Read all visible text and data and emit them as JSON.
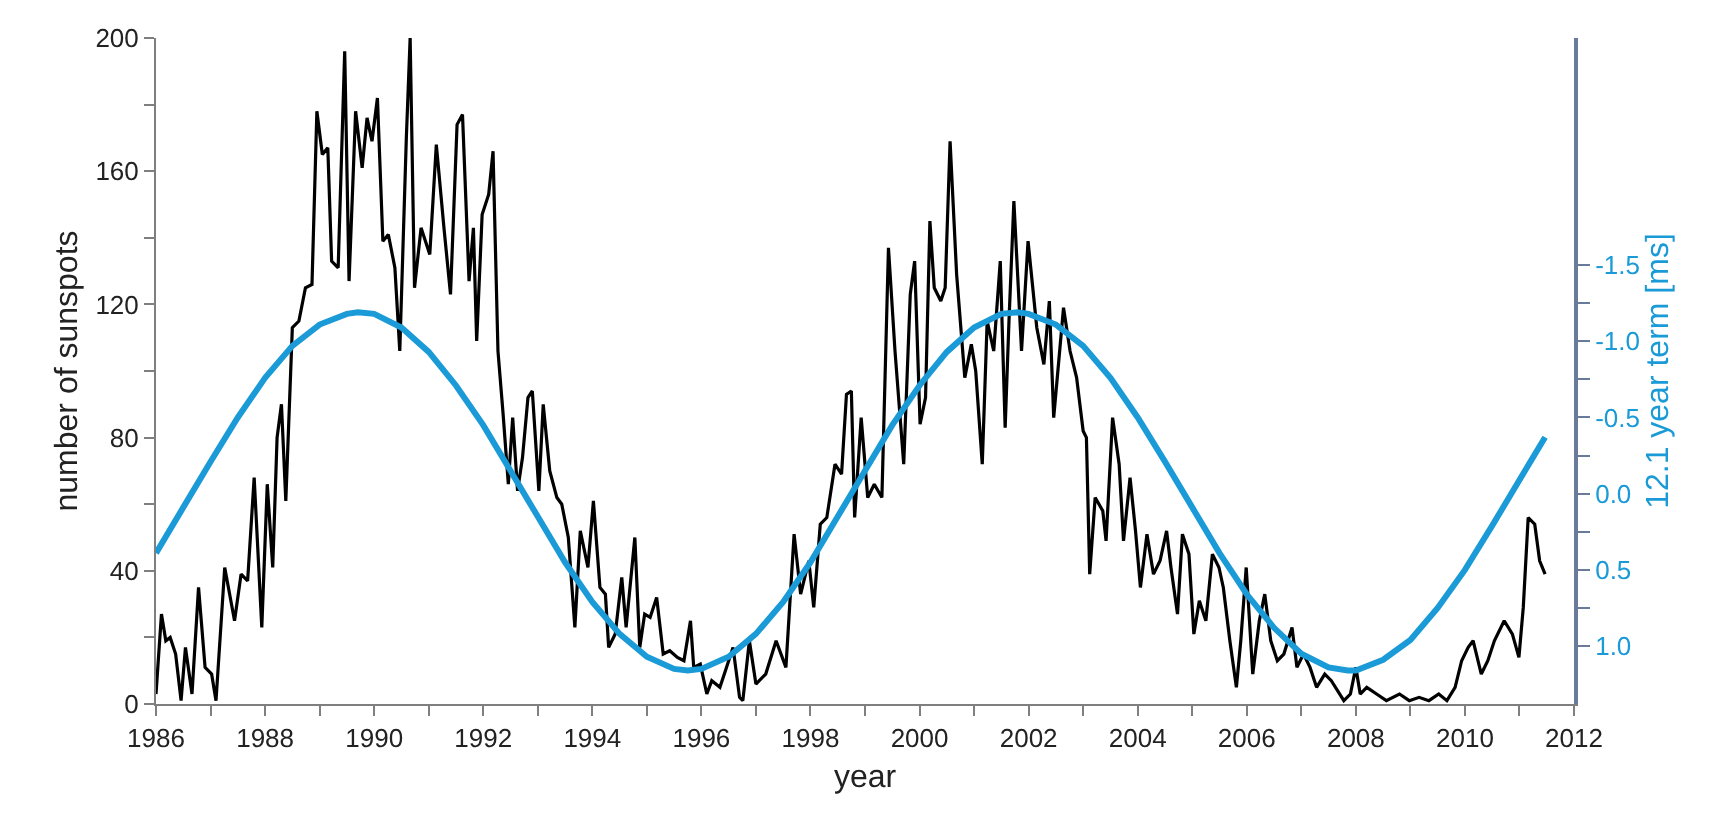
{
  "chart_data": {
    "type": "line",
    "xlabel": "year",
    "ylabel": "number of sunspots",
    "y2label": "12.1 year term [ms]",
    "xlim": [
      1986,
      2012
    ],
    "xticks": [
      1986,
      {
        "value": 1987,
        "label": null
      },
      1988,
      {
        "value": 1989,
        "label": null
      },
      1990,
      {
        "value": 1991,
        "label": null
      },
      1992,
      {
        "value": 1993,
        "label": null
      },
      1994,
      {
        "value": 1995,
        "label": null
      },
      1996,
      {
        "value": 1997,
        "label": null
      },
      1998,
      {
        "value": 1999,
        "label": null
      },
      2000,
      {
        "value": 2001,
        "label": null
      },
      2002,
      {
        "value": 2003,
        "label": null
      },
      2004,
      {
        "value": 2005,
        "label": null
      },
      2006,
      {
        "value": 2007,
        "label": null
      },
      2008,
      {
        "value": 2009,
        "label": null
      },
      2010,
      {
        "value": 2011,
        "label": null
      },
      2012
    ],
    "ylim": [
      0,
      200
    ],
    "yticks": [
      0,
      {
        "value": 20,
        "label": null
      },
      40,
      {
        "value": 60,
        "label": null
      },
      80,
      {
        "value": 100,
        "label": null
      },
      120,
      {
        "value": 140,
        "label": null
      },
      160,
      {
        "value": 180,
        "label": null
      },
      200
    ],
    "y2lim": [
      1.38,
      -2.99
    ],
    "y2ticks": [
      {
        "value": -1.5,
        "label": "-1.5"
      },
      {
        "value": -1.25,
        "label": null
      },
      {
        "value": -1.0,
        "label": "-1.0"
      },
      {
        "value": -0.75,
        "label": null
      },
      {
        "value": -0.5,
        "label": "-0.5"
      },
      {
        "value": -0.25,
        "label": null
      },
      {
        "value": 0,
        "label": "0.0"
      },
      {
        "value": 0.25,
        "label": null
      },
      {
        "value": 0.5,
        "label": "0.5"
      },
      {
        "value": 0.75,
        "label": null
      },
      {
        "value": 1.0,
        "label": "1.0"
      }
    ],
    "marker": "none",
    "line_style": "solid",
    "series": [
      {
        "color": "#000000",
        "x": [
          1986.0,
          1986.1,
          1986.18,
          1986.26,
          1986.36,
          1986.46,
          1986.54,
          1986.66,
          1986.78,
          1986.9,
          1987.02,
          1987.1,
          1987.26,
          1987.44,
          1987.56,
          1987.68,
          1987.8,
          1987.94,
          1988.04,
          1988.14,
          1988.22,
          1988.3,
          1988.38,
          1988.5,
          1988.62,
          1988.74,
          1988.86,
          1988.95,
          1989.05,
          1989.15,
          1989.22,
          1989.34,
          1989.46,
          1989.54,
          1989.66,
          1989.78,
          1989.87,
          1989.96,
          1990.06,
          1990.16,
          1990.26,
          1990.38,
          1990.47,
          1990.59,
          1990.66,
          1990.74,
          1990.86,
          1991.02,
          1991.14,
          1991.28,
          1991.4,
          1991.52,
          1991.62,
          1991.74,
          1991.82,
          1991.88,
          1991.98,
          1992.1,
          1992.18,
          1992.27,
          1992.36,
          1992.46,
          1992.54,
          1992.63,
          1992.72,
          1992.82,
          1992.9,
          1993.02,
          1993.1,
          1993.22,
          1993.35,
          1993.44,
          1993.56,
          1993.68,
          1993.78,
          1993.92,
          1994.02,
          1994.14,
          1994.24,
          1994.3,
          1994.42,
          1994.54,
          1994.62,
          1994.78,
          1994.87,
          1994.96,
          1995.06,
          1995.18,
          1995.3,
          1995.42,
          1995.56,
          1995.68,
          1995.8,
          1995.86,
          1995.98,
          1996.1,
          1996.19,
          1996.34,
          1996.46,
          1996.58,
          1996.7,
          1996.76,
          1996.88,
          1997.0,
          1997.18,
          1997.37,
          1997.55,
          1997.7,
          1997.82,
          1997.97,
          1998.06,
          1998.18,
          1998.3,
          1998.45,
          1998.57,
          1998.66,
          1998.75,
          1998.81,
          1998.93,
          1999.05,
          1999.17,
          1999.31,
          1999.43,
          1999.55,
          1999.71,
          1999.83,
          1999.91,
          2000.01,
          2000.11,
          2000.19,
          2000.27,
          2000.39,
          2000.47,
          2000.56,
          2000.68,
          2000.83,
          2000.95,
          2001.03,
          2001.15,
          2001.24,
          2001.36,
          2001.48,
          2001.57,
          2001.64,
          2001.73,
          2001.87,
          2001.99,
          2002.15,
          2002.28,
          2002.38,
          2002.46,
          2002.64,
          2002.76,
          2002.88,
          2003.0,
          2003.06,
          2003.12,
          2003.22,
          2003.36,
          2003.42,
          2003.54,
          2003.66,
          2003.74,
          2003.86,
          2003.96,
          2004.05,
          2004.17,
          2004.29,
          2004.41,
          2004.53,
          2004.61,
          2004.73,
          2004.82,
          2004.94,
          2005.03,
          2005.13,
          2005.25,
          2005.37,
          2005.49,
          2005.57,
          2005.69,
          2005.81,
          2005.89,
          2005.99,
          2006.11,
          2006.23,
          2006.33,
          2006.44,
          2006.56,
          2006.68,
          2006.83,
          2006.92,
          2007.04,
          2007.16,
          2007.28,
          2007.43,
          2007.55,
          2007.78,
          2007.9,
          2008.0,
          2008.08,
          2008.2,
          2008.38,
          2008.56,
          2008.8,
          2008.98,
          2009.16,
          2009.34,
          2009.52,
          2009.67,
          2009.82,
          2009.94,
          2010.06,
          2010.15,
          2010.3,
          2010.42,
          2010.54,
          2010.72,
          2010.87,
          2010.99,
          2011.07,
          2011.16,
          2011.28,
          2011.37,
          2011.47
        ],
        "values": [
          3,
          27,
          19,
          20,
          15,
          1,
          17,
          3,
          35,
          11,
          9,
          1,
          41,
          25,
          39,
          37,
          68,
          23,
          66,
          41,
          80,
          90,
          61,
          113,
          115,
          125,
          126,
          178,
          165,
          167,
          133,
          131,
          196,
          127,
          178,
          161,
          176,
          169,
          182,
          139,
          141,
          131,
          106,
          170,
          200,
          125,
          143,
          135,
          168,
          143,
          123,
          174,
          177,
          127,
          143,
          109,
          147,
          153,
          166,
          106,
          88,
          66,
          86,
          64,
          74,
          92,
          94,
          64,
          90,
          70,
          62,
          60,
          50,
          23,
          52,
          41,
          61,
          35,
          33,
          17,
          21,
          38,
          23,
          50,
          17,
          27,
          26,
          32,
          15,
          16,
          14,
          13,
          25,
          11,
          12,
          3,
          7,
          5,
          11,
          17,
          2,
          1,
          19,
          6,
          9,
          19,
          11,
          51,
          33,
          43,
          29,
          54,
          56,
          72,
          69,
          93,
          94,
          56,
          86,
          62,
          66,
          62,
          137,
          106,
          72,
          123,
          133,
          84,
          92,
          145,
          125,
          121,
          125,
          169,
          129,
          98,
          108,
          100,
          72,
          115,
          106,
          133,
          83,
          115,
          151,
          106,
          139,
          113,
          102,
          121,
          86,
          119,
          106,
          98,
          82,
          80,
          39,
          62,
          58,
          49,
          86,
          72,
          49,
          68,
          52,
          35,
          51,
          39,
          43,
          52,
          41,
          27,
          51,
          45,
          21,
          31,
          25,
          45,
          41,
          35,
          19,
          5,
          19,
          41,
          9,
          25,
          33,
          19,
          13,
          15,
          23,
          11,
          15,
          11,
          5,
          9,
          7,
          1,
          3,
          11,
          3,
          5,
          3,
          1,
          3,
          1,
          2,
          1,
          3,
          1,
          5,
          13,
          17,
          19,
          9,
          13,
          19,
          25,
          21,
          14,
          29,
          56,
          54,
          43,
          39
        ]
      },
      {
        "color": "#1a9ad6",
        "axis": "y2",
        "x": [
          1986,
          1986.5,
          1987,
          1987.5,
          1988,
          1988.5,
          1989,
          1989.5,
          1989.7,
          1990,
          1990.5,
          1991,
          1991.5,
          1992,
          1992.5,
          1993,
          1993.5,
          1994,
          1994.5,
          1995,
          1995.5,
          1995.75,
          1996,
          1996.5,
          1997,
          1997.5,
          1998,
          1998.5,
          1999,
          1999.5,
          2000,
          2000.5,
          2001,
          2001.5,
          2001.8,
          2002,
          2002.5,
          2003,
          2003.5,
          2004,
          2004.5,
          2005,
          2005.5,
          2006,
          2006.5,
          2007,
          2007.5,
          2007.85,
          2008,
          2008.5,
          2009,
          2009.5,
          2010,
          2010.5,
          2011,
          2011.47
        ],
        "values": [
          0.39,
          0.09,
          -0.21,
          -0.5,
          -0.76,
          -0.97,
          -1.11,
          -1.18,
          -1.19,
          -1.18,
          -1.09,
          -0.93,
          -0.71,
          -0.45,
          -0.15,
          0.15,
          0.45,
          0.71,
          0.92,
          1.07,
          1.15,
          1.16,
          1.15,
          1.07,
          0.92,
          0.71,
          0.45,
          0.15,
          -0.15,
          -0.45,
          -0.71,
          -0.93,
          -1.09,
          -1.18,
          -1.19,
          -1.18,
          -1.11,
          -0.97,
          -0.76,
          -0.5,
          -0.21,
          0.09,
          0.39,
          0.66,
          0.88,
          1.05,
          1.14,
          1.16,
          1.16,
          1.09,
          0.96,
          0.75,
          0.5,
          0.21,
          -0.09,
          -0.37
        ]
      }
    ]
  }
}
